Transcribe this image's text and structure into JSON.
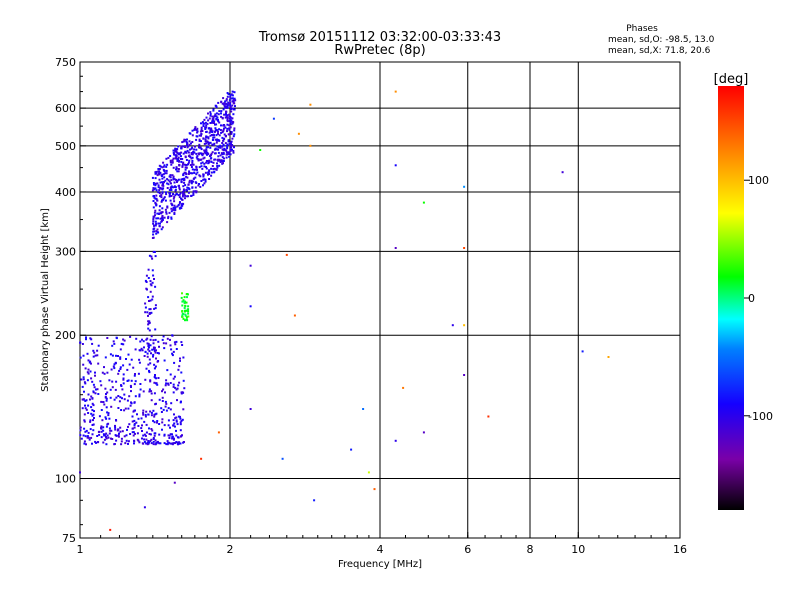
{
  "chart_data": {
    "type": "scatter",
    "title_line1": "Tromsø 20151112 03:32:00-03:33:43",
    "title_line2": "RwPretec (8p)",
    "stats": {
      "heading": "Phases",
      "line1": "mean, sd,O: -98.5, 13.0",
      "line2": "mean, sd,X:  71.8, 20.6"
    },
    "xlabel": "Frequency [MHz]",
    "ylabel": "Stationary phase Virtual Height [km]",
    "x_scale": "log2",
    "y_scale": "log",
    "xlim": [
      1,
      16
    ],
    "ylim": [
      75,
      750
    ],
    "x_ticks": [
      1,
      2,
      4,
      6,
      8,
      10,
      16
    ],
    "x_tick_labels": [
      "1",
      "2",
      "4",
      "6",
      "8",
      "10",
      "16"
    ],
    "y_ticks": [
      75,
      100,
      200,
      300,
      400,
      500,
      600,
      750
    ],
    "y_tick_labels": [
      "75",
      "100",
      "200",
      "300",
      "400",
      "500",
      "600",
      "750"
    ],
    "grid": true,
    "colorbar": {
      "label": "[deg]",
      "min": -180,
      "max": 180,
      "ticks": [
        100,
        0,
        -100
      ],
      "tick_labels": [
        "100",
        "0",
        "-100"
      ],
      "colormap": "rainbow (black-purple-blue-cyan-green-yellow-orange-red)"
    },
    "trace_clusters": [
      {
        "description": "F-layer trace",
        "x_range": [
          1.4,
          2.05
        ],
        "y_range": [
          330,
          650
        ],
        "phase_mean": -100
      },
      {
        "description": "lower trace",
        "x_range": [
          1.0,
          1.62
        ],
        "y_range": [
          115,
          300
        ],
        "phase_mean": -100
      },
      {
        "description": "green patch",
        "x_range": [
          1.6,
          1.65
        ],
        "y_range": [
          215,
          245
        ],
        "phase_mean": 20
      }
    ],
    "points": [
      {
        "x": 9.3,
        "y": 440,
        "phase": -110
      },
      {
        "x": 10.2,
        "y": 185,
        "phase": -80
      },
      {
        "x": 11.5,
        "y": 180,
        "phase": 110
      },
      {
        "x": 6.6,
        "y": 135,
        "phase": 160
      },
      {
        "x": 5.9,
        "y": 165,
        "phase": -120
      },
      {
        "x": 5.9,
        "y": 305,
        "phase": 150
      },
      {
        "x": 5.6,
        "y": 210,
        "phase": -100
      },
      {
        "x": 5.9,
        "y": 210,
        "phase": 100
      },
      {
        "x": 4.9,
        "y": 125,
        "phase": -120
      },
      {
        "x": 4.3,
        "y": 650,
        "phase": 120
      },
      {
        "x": 4.3,
        "y": 455,
        "phase": -90
      },
      {
        "x": 4.3,
        "y": 305,
        "phase": -120
      },
      {
        "x": 4.3,
        "y": 120,
        "phase": -100
      },
      {
        "x": 4.45,
        "y": 155,
        "phase": 130
      },
      {
        "x": 4.9,
        "y": 380,
        "phase": 20
      },
      {
        "x": 5.9,
        "y": 410,
        "phase": -40
      },
      {
        "x": 3.7,
        "y": 140,
        "phase": -50
      },
      {
        "x": 3.8,
        "y": 103,
        "phase": 60
      },
      {
        "x": 3.9,
        "y": 95,
        "phase": 140
      },
      {
        "x": 3.5,
        "y": 115,
        "phase": -80
      },
      {
        "x": 2.9,
        "y": 610,
        "phase": 120
      },
      {
        "x": 2.9,
        "y": 500,
        "phase": 120
      },
      {
        "x": 2.75,
        "y": 530,
        "phase": 120
      },
      {
        "x": 2.6,
        "y": 295,
        "phase": 150
      },
      {
        "x": 2.7,
        "y": 220,
        "phase": 140
      },
      {
        "x": 2.2,
        "y": 280,
        "phase": -110
      },
      {
        "x": 2.2,
        "y": 230,
        "phase": -90
      },
      {
        "x": 2.2,
        "y": 140,
        "phase": -110
      },
      {
        "x": 2.55,
        "y": 110,
        "phase": -60
      },
      {
        "x": 2.95,
        "y": 90,
        "phase": -80
      },
      {
        "x": 2.45,
        "y": 570,
        "phase": -70
      },
      {
        "x": 2.3,
        "y": 490,
        "phase": 20
      },
      {
        "x": 1.9,
        "y": 125,
        "phase": 140
      },
      {
        "x": 1.75,
        "y": 110,
        "phase": 160
      },
      {
        "x": 1.55,
        "y": 98,
        "phase": -120
      },
      {
        "x": 1.15,
        "y": 78,
        "phase": 170
      },
      {
        "x": 1.35,
        "y": 87,
        "phase": -100
      },
      {
        "x": 1.0,
        "y": 103,
        "phase": -110
      }
    ]
  }
}
